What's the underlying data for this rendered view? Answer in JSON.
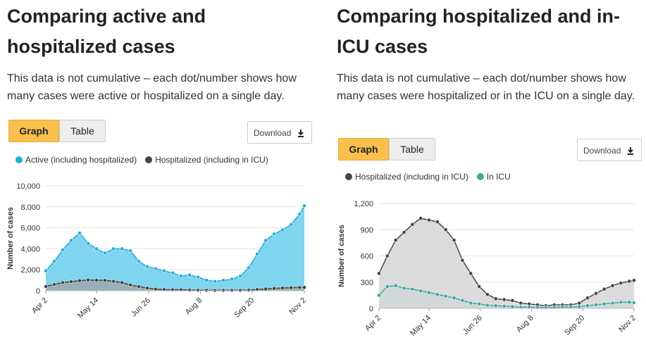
{
  "sections": [
    {
      "title": "Comparing active and hospitalized cases",
      "description": "This data is not cumulative – each dot/number shows how many cases were active or hospitalized on a single day.",
      "buttons": [
        "Graph",
        "Table"
      ],
      "download": "Download"
    },
    {
      "title": "Comparing hospitalized and in-ICU cases",
      "description": "This data is not cumulative – each dot/number shows how many cases were hospitalized or in the ICU on a single day.",
      "buttons": [
        "Graph",
        "Table"
      ],
      "download": "Download"
    }
  ],
  "chart_data": [
    {
      "type": "area",
      "y_label": "Number of cases",
      "x": [
        0,
        7,
        14,
        21,
        28,
        35,
        42,
        49,
        56,
        63,
        70,
        77,
        84,
        91,
        98,
        105,
        112,
        119,
        126,
        133,
        140,
        147,
        154,
        161,
        168,
        175,
        182,
        189,
        196,
        203,
        210,
        214
      ],
      "xlim": [
        0,
        214
      ],
      "xticks": [
        {
          "value": 0,
          "label": "Apr 2"
        },
        {
          "value": 42,
          "label": "May 14"
        },
        {
          "value": 85,
          "label": "Jun 26"
        },
        {
          "value": 128,
          "label": "Aug 8"
        },
        {
          "value": 171,
          "label": "Sep 20"
        },
        {
          "value": 214,
          "label": "Nov 2"
        }
      ],
      "ylim": [
        0,
        10000
      ],
      "yticks": [
        0,
        {
          "value": 2000,
          "label": "2,000"
        },
        {
          "value": 4000,
          "label": "4,000"
        },
        {
          "value": 6000,
          "label": "6,000"
        },
        {
          "value": 8000,
          "label": "8,000"
        },
        {
          "value": 10000,
          "label": "10,000"
        }
      ],
      "grid": true,
      "series": [
        {
          "name": "Active (including hospitalized)",
          "color": "#1fb0dc",
          "fill": "#7fd4ee",
          "values": [
            1900,
            2800,
            3900,
            4800,
            5500,
            4500,
            4000,
            3600,
            4000,
            4000,
            3800,
            2800,
            2300,
            2100,
            1900,
            1700,
            1400,
            1500,
            1300,
            1000,
            900,
            1000,
            1100,
            1400,
            2200,
            3500,
            4800,
            5400,
            5800,
            6300,
            7300,
            8100
          ]
        },
        {
          "name": "Hospitalized (including in ICU)",
          "color": "#444444",
          "fill": "#9aaeb5",
          "values": [
            400,
            600,
            780,
            870,
            960,
            1030,
            1010,
            990,
            900,
            780,
            550,
            400,
            250,
            160,
            110,
            100,
            90,
            60,
            50,
            40,
            30,
            40,
            40,
            40,
            60,
            120,
            170,
            220,
            260,
            290,
            310,
            320
          ]
        }
      ]
    },
    {
      "type": "area",
      "y_label": "Number of cases",
      "x": [
        0,
        7,
        14,
        21,
        28,
        35,
        42,
        49,
        56,
        63,
        70,
        77,
        84,
        91,
        98,
        105,
        112,
        119,
        126,
        133,
        140,
        147,
        154,
        161,
        168,
        175,
        182,
        189,
        196,
        203,
        210,
        214
      ],
      "xlim": [
        0,
        214
      ],
      "xticks": [
        {
          "value": 0,
          "label": "Apr 2"
        },
        {
          "value": 42,
          "label": "May 14"
        },
        {
          "value": 85,
          "label": "Jun 26"
        },
        {
          "value": 128,
          "label": "Aug 8"
        },
        {
          "value": 171,
          "label": "Sep 20"
        },
        {
          "value": 214,
          "label": "Nov 2"
        }
      ],
      "ylim": [
        0,
        1200
      ],
      "yticks": [
        0,
        300,
        600,
        900,
        {
          "value": 1200,
          "label": "1,200"
        }
      ],
      "grid": true,
      "series": [
        {
          "name": "Hospitalized (including in ICU)",
          "color": "#444444",
          "fill": "#dcdcdc",
          "values": [
            400,
            600,
            780,
            870,
            960,
            1030,
            1010,
            990,
            900,
            780,
            550,
            400,
            250,
            160,
            110,
            100,
            90,
            60,
            50,
            40,
            30,
            40,
            40,
            40,
            60,
            120,
            170,
            220,
            260,
            290,
            310,
            320
          ]
        },
        {
          "name": "In ICU",
          "color": "#3aa89d",
          "fill": "#d2d8d8",
          "values": [
            150,
            250,
            260,
            230,
            220,
            200,
            180,
            160,
            140,
            120,
            90,
            60,
            50,
            35,
            30,
            25,
            20,
            15,
            15,
            10,
            10,
            12,
            15,
            15,
            20,
            30,
            40,
            50,
            60,
            70,
            70,
            65
          ]
        }
      ]
    }
  ]
}
